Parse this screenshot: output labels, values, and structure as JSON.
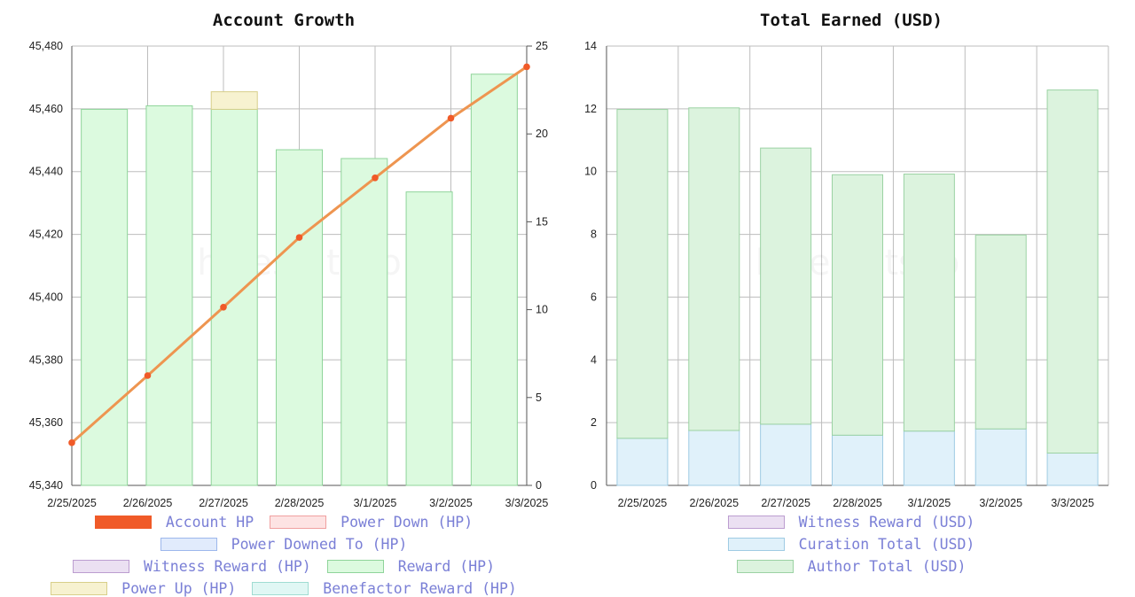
{
  "watermark": "hivestats.io",
  "charts": [
    {
      "title": "Account Growth",
      "chart_data": {
        "type": "bar",
        "categories": [
          "2/25/2025",
          "2/26/2025",
          "2/27/2025",
          "2/28/2025",
          "3/1/2025",
          "3/2/2025",
          "3/3/2025"
        ],
        "grid": true,
        "y_left": {
          "ylim": [
            45340,
            45480
          ],
          "ticks": [
            "45,340",
            "45,360",
            "45,380",
            "45,400",
            "45,420",
            "45,440",
            "45,460",
            "45,480"
          ]
        },
        "y_right": {
          "ylim": [
            0,
            25
          ],
          "ticks": [
            "0",
            "5",
            "10",
            "15",
            "20",
            "25"
          ]
        },
        "series": [
          {
            "name": "Account HP",
            "type": "line",
            "axis": "left",
            "color": "#f05a28",
            "values": [
              45353.6,
              45375.0,
              45396.8,
              45419.0,
              45438.0,
              45457.0,
              45473.4
            ]
          },
          {
            "name": "Reward (HP)",
            "type": "bar",
            "axis": "right",
            "fill": "#dcfadf",
            "stroke": "#8fd49a",
            "values": [
              21.4,
              21.6,
              21.4,
              19.1,
              18.6,
              16.7,
              23.4
            ]
          },
          {
            "name": "Power Up (HP)",
            "type": "bar",
            "axis": "right",
            "stacked_on": "Reward (HP)",
            "fill": "#f7f2d0",
            "stroke": "#d8cf8a",
            "values": [
              0,
              0,
              1.0,
              0,
              0,
              0,
              0
            ]
          }
        ],
        "legend": [
          {
            "name": "Account HP",
            "fill": "#f05a28",
            "stroke": "#f05a28"
          },
          {
            "name": "Power Down (HP)",
            "fill": "#fde3e3",
            "stroke": "#f0a0a0"
          },
          {
            "name": "Power Downed To (HP)",
            "fill": "#e1ebfc",
            "stroke": "#9db7ec"
          },
          {
            "name": "Witness Reward (HP)",
            "fill": "#ebe0f2",
            "stroke": "#bc9dd0"
          },
          {
            "name": "Reward (HP)",
            "fill": "#dcfadf",
            "stroke": "#8fd49a"
          },
          {
            "name": "Power Up (HP)",
            "fill": "#f7f2d0",
            "stroke": "#d8cf8a"
          },
          {
            "name": "Benefactor Reward (HP)",
            "fill": "#e0f7f4",
            "stroke": "#9fdcd2"
          }
        ]
      }
    },
    {
      "title": "Total Earned (USD)",
      "chart_data": {
        "type": "bar",
        "stacked": true,
        "categories": [
          "2/25/2025",
          "2/26/2025",
          "2/27/2025",
          "2/28/2025",
          "3/1/2025",
          "3/2/2025",
          "3/3/2025"
        ],
        "grid": true,
        "ylim": [
          0,
          14
        ],
        "y_ticks": [
          "0",
          "2",
          "4",
          "6",
          "8",
          "10",
          "12",
          "14"
        ],
        "series": [
          {
            "name": "Curation Total (USD)",
            "fill": "#e0f1fa",
            "stroke": "#9fcbe3",
            "values": [
              1.5,
              1.75,
              1.95,
              1.6,
              1.73,
              1.8,
              1.03
            ]
          },
          {
            "name": "Author Total (USD)",
            "fill": "#dcf3de",
            "stroke": "#9bd2a3",
            "values": [
              10.48,
              10.28,
              8.8,
              8.3,
              8.19,
              6.18,
              11.57
            ]
          }
        ],
        "legend": [
          {
            "name": "Witness Reward (USD)",
            "fill": "#ebe0f2",
            "stroke": "#bc9dd0"
          },
          {
            "name": "Curation Total (USD)",
            "fill": "#e0f1fa",
            "stroke": "#9fcbe3"
          },
          {
            "name": "Author Total (USD)",
            "fill": "#dcf3de",
            "stroke": "#9bd2a3"
          }
        ]
      }
    }
  ]
}
